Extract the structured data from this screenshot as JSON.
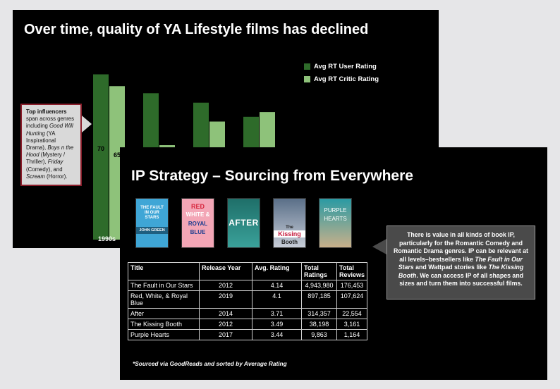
{
  "back_slide": {
    "title": "Over time, quality of YA Lifestyle films has declined",
    "callout": {
      "heading": "Top influencers",
      "t1": " span across genres including ",
      "i1": "Good Will Hunting",
      "t2": " (YA Inspirational Drama), ",
      "i2": "Boys n the Hood",
      "t3": " (Mystery / Thriller), ",
      "i3": "Friday",
      "t4": " (Comedy), and ",
      "i4": "Scream",
      "t5": " (Horror)."
    }
  },
  "chart_data": {
    "type": "bar",
    "title": "Over time, quality of YA Lifestyle films has declined",
    "categories": [
      "1990s",
      "",
      "",
      ""
    ],
    "series": [
      {
        "name": "Avg RT User Rating",
        "color": "#2e6b2a",
        "values": [
          70,
          62,
          58,
          52
        ],
        "labels": [
          "70",
          "",
          "",
          ""
        ]
      },
      {
        "name": "Avg RT Critic Rating",
        "color": "#8ec27a",
        "values": [
          65,
          40,
          50,
          54
        ],
        "labels": [
          "65",
          "",
          "",
          ""
        ]
      }
    ],
    "legend_position": "top-right",
    "grid": false
  },
  "front_slide": {
    "title": "IP Strategy – Sourcing from Everywhere",
    "books": [
      {
        "name": "The Fault in Our Stars",
        "cover_text": "THE FAULT IN OUR STARS",
        "author": "JOHN GREEN",
        "bg": "#3fa6d6",
        "fg": "#ffffff"
      },
      {
        "name": "Red, White & Royal Blue",
        "cover_text_1": "RED",
        "cover_text_2": "WHITE &",
        "cover_text_3": "ROYAL",
        "cover_text_4": "BLUE",
        "bg": "#f3a6b6"
      },
      {
        "name": "After",
        "cover_text": "AFTER",
        "bg": "#2f8f86"
      },
      {
        "name": "The Kissing Booth",
        "cover_text_1": "The",
        "cover_text_2": "Kissing",
        "cover_text_3": "Booth",
        "bg": "#7a8ea6"
      },
      {
        "name": "Purple Hearts",
        "cover_text_1": "PURPLE",
        "cover_text_2": "HEARTS",
        "bg": "#2a9aa3"
      }
    ],
    "table": {
      "headers": [
        "Title",
        "Release Year",
        "Avg. Rating",
        "Total Ratings",
        "Total Reviews"
      ],
      "rows": [
        [
          "The Fault in Our Stars",
          "2012",
          "4.14",
          "4,943,980",
          "176,453"
        ],
        [
          "Red, White, & Royal Blue",
          "2019",
          "4.1",
          "897,185",
          "107,624"
        ],
        [
          "After",
          "2014",
          "3.71",
          "314,357",
          "22,554"
        ],
        [
          "The Kissing Booth",
          "2012",
          "3.49",
          "38,198",
          "3,161"
        ],
        [
          "Purple Hearts",
          "2017",
          "3.44",
          "9,863",
          "1,164"
        ]
      ]
    },
    "footnote": "*Sourced via GoodReads and sorted by Average Rating",
    "callout": {
      "t1": "There is value in all kinds of book IP, particularly for the Romantic Comedy and Romantic Drama genres. IP can be relevant at all levels–bestsellers like ",
      "i1": "The Fault in Our Stars",
      "t2": " and Wattpad stories like ",
      "i2": "The Kissing Booth",
      "t3": ". We can access IP of all shapes and sizes and turn them into successful films."
    }
  }
}
